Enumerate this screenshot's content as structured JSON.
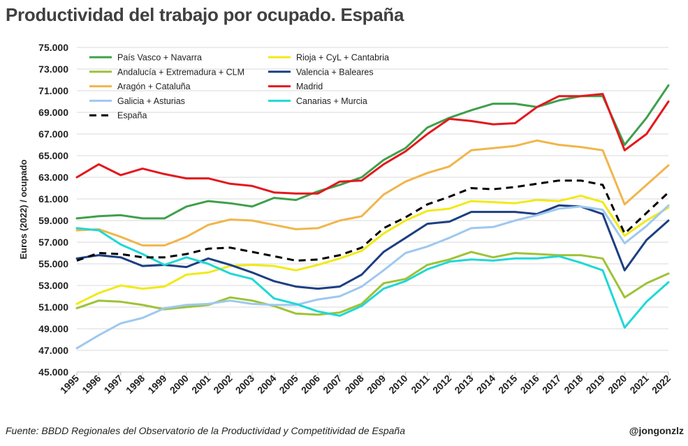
{
  "title": "Productividad del trabajo por ocupado. España",
  "source": "Fuente: BBDD Regionales del Observatorio de la Productividad y Competitividad de España",
  "credit": "@jongonzlz",
  "chart_data": {
    "type": "line",
    "title": "Productividad del trabajo por ocupado. España",
    "xlabel": "",
    "ylabel": "Euros (2022) / ocupado",
    "ylim": [
      45000,
      75000
    ],
    "y_ticks": [
      45000,
      47000,
      49000,
      51000,
      53000,
      55000,
      57000,
      59000,
      61000,
      63000,
      65000,
      67000,
      69000,
      71000,
      73000,
      75000
    ],
    "y_tick_labels": [
      "45.000",
      "47.000",
      "49.000",
      "51.000",
      "53.000",
      "55.000",
      "57.000",
      "59.000",
      "61.000",
      "63.000",
      "65.000",
      "67.000",
      "69.000",
      "71.000",
      "73.000",
      "75.000"
    ],
    "grid": true,
    "legend_position": "top-left",
    "x": [
      "1995",
      "1996",
      "1997",
      "1998",
      "1999",
      "2000",
      "2001",
      "2002",
      "2003",
      "2004",
      "2005",
      "2006",
      "2007",
      "2008",
      "2009",
      "2010",
      "2011",
      "2012",
      "2013",
      "2014",
      "2015",
      "2016",
      "2017",
      "2018",
      "2019",
      "2020",
      "2021",
      "2022"
    ],
    "series": [
      {
        "name": "País Vasco + Navarra",
        "color": "#3ea04b",
        "dash": false,
        "values": [
          59200,
          59400,
          59500,
          59200,
          59200,
          60300,
          60800,
          60600,
          60300,
          61100,
          60900,
          61700,
          62300,
          63000,
          64600,
          65700,
          67600,
          68500,
          69200,
          69800,
          69800,
          69500,
          70100,
          70500,
          70500,
          66000,
          68500,
          71500
        ]
      },
      {
        "name": "Rioja + CyL + Cantabria",
        "color": "#f1ea16",
        "dash": false,
        "values": [
          51300,
          52300,
          53000,
          52700,
          52900,
          54000,
          54200,
          54800,
          54900,
          54800,
          54400,
          54900,
          55500,
          56200,
          57800,
          59000,
          59900,
          60100,
          60800,
          60700,
          60600,
          60900,
          60800,
          61300,
          60700,
          57600,
          59000,
          60200
        ]
      },
      {
        "name": "Andalucía + Extremadura + CLM",
        "color": "#9ec237",
        "dash": false,
        "values": [
          50900,
          51600,
          51500,
          51200,
          50800,
          51000,
          51200,
          51900,
          51600,
          51100,
          50400,
          50300,
          50500,
          51300,
          53200,
          53600,
          54900,
          55400,
          56100,
          55600,
          56000,
          55900,
          55800,
          55800,
          55500,
          51900,
          53200,
          54100
        ]
      },
      {
        "name": "Valencia + Baleares",
        "color": "#1c3f82",
        "dash": false,
        "values": [
          55500,
          55800,
          55600,
          54800,
          54900,
          54700,
          55500,
          54900,
          54200,
          53400,
          52900,
          52700,
          52900,
          54000,
          56100,
          57400,
          58700,
          58900,
          59800,
          59800,
          59800,
          59600,
          60400,
          60300,
          59600,
          54400,
          57200,
          59000
        ]
      },
      {
        "name": "Aragón + Cataluña",
        "color": "#f1b54b",
        "dash": false,
        "values": [
          58100,
          58200,
          57500,
          56700,
          56700,
          57500,
          58600,
          59100,
          59000,
          58600,
          58200,
          58300,
          59000,
          59400,
          61400,
          62600,
          63400,
          64000,
          65500,
          65700,
          65900,
          66400,
          66000,
          65800,
          65500,
          60500,
          62300,
          64100
        ]
      },
      {
        "name": "Madrid",
        "color": "#e3181d",
        "dash": false,
        "values": [
          63000,
          64200,
          63200,
          63800,
          63300,
          62900,
          62900,
          62400,
          62200,
          61600,
          61500,
          61500,
          62600,
          62700,
          64200,
          65400,
          67000,
          68400,
          68200,
          67900,
          68000,
          69500,
          70500,
          70500,
          70700,
          65500,
          67000,
          70000
        ]
      },
      {
        "name": "Galicia + Asturias",
        "color": "#9ec8ef",
        "dash": false,
        "values": [
          47200,
          48400,
          49500,
          50000,
          50900,
          51200,
          51300,
          51600,
          51300,
          51200,
          51200,
          51700,
          52000,
          52900,
          54400,
          56000,
          56600,
          57400,
          58300,
          58400,
          59000,
          59500,
          60100,
          60300,
          60000,
          56900,
          58500,
          60400
        ]
      },
      {
        "name": "Canarias + Murcia",
        "color": "#1fd8d6",
        "dash": false,
        "values": [
          58300,
          58100,
          56800,
          55900,
          54900,
          55600,
          55000,
          54100,
          53600,
          51800,
          51300,
          50600,
          50200,
          51100,
          52700,
          53400,
          54500,
          55200,
          55400,
          55300,
          55500,
          55500,
          55700,
          55100,
          54400,
          49100,
          51500,
          53300
        ]
      },
      {
        "name": "España",
        "color": "#000000",
        "dash": true,
        "values": [
          55300,
          56000,
          55900,
          55600,
          55600,
          55900,
          56400,
          56500,
          56100,
          55700,
          55300,
          55400,
          55800,
          56500,
          58300,
          59300,
          60500,
          61200,
          62000,
          61900,
          62100,
          62400,
          62700,
          62700,
          62300,
          57800,
          59700,
          61600
        ]
      }
    ]
  }
}
